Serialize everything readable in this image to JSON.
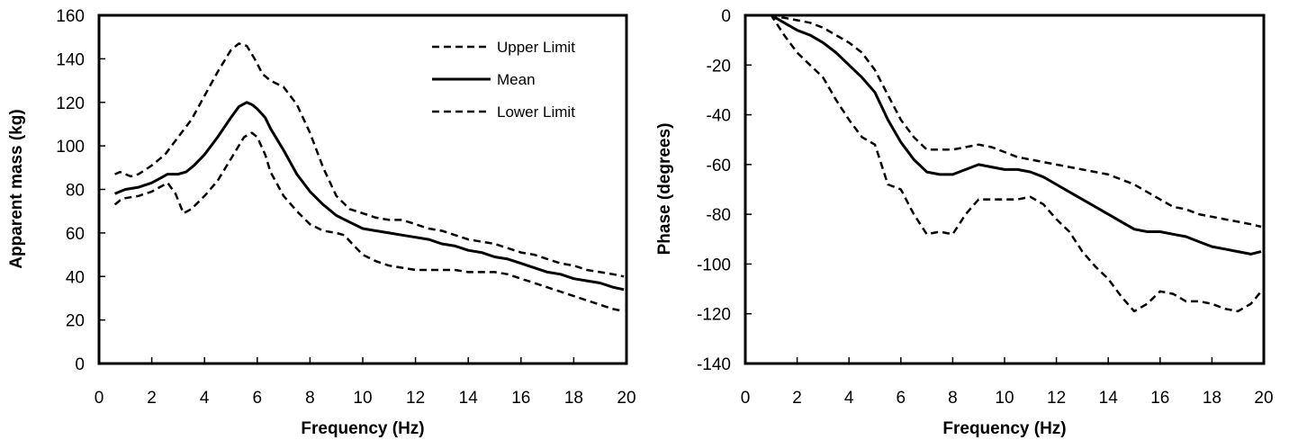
{
  "chart_data": [
    {
      "type": "line",
      "title": "",
      "xlabel": "Frequency (Hz)",
      "ylabel": "Apparent mass (kg)",
      "xlim": [
        0,
        20
      ],
      "ylim": [
        0,
        160
      ],
      "xticks": [
        0,
        2,
        4,
        6,
        8,
        10,
        12,
        14,
        16,
        18,
        20
      ],
      "yticks": [
        0,
        20,
        40,
        60,
        80,
        100,
        120,
        140,
        160
      ],
      "grid": false,
      "legend_position": "top-right",
      "series": [
        {
          "name": "Upper Limit",
          "style": "dashed",
          "x": [
            0.6,
            0.8,
            1.0,
            1.2,
            1.5,
            2.0,
            2.5,
            3.0,
            3.5,
            4.0,
            4.5,
            5.0,
            5.3,
            5.6,
            5.9,
            6.2,
            6.5,
            7.0,
            7.5,
            8.0,
            8.5,
            9.0,
            9.5,
            10.0,
            10.5,
            11.0,
            11.5,
            12.0,
            12.5,
            13.0,
            13.5,
            14.0,
            14.5,
            15.0,
            15.5,
            16.0,
            16.5,
            17.0,
            17.5,
            18.0,
            18.5,
            19.0,
            19.5,
            19.9
          ],
          "y": [
            87,
            88,
            87,
            86,
            87,
            91,
            96,
            104,
            112,
            123,
            134,
            144,
            147,
            146,
            140,
            133,
            130,
            127,
            119,
            106,
            90,
            77,
            71,
            69,
            67,
            66,
            66,
            64,
            62,
            61,
            59,
            57,
            56,
            55,
            53,
            51,
            50,
            48,
            46,
            45,
            43,
            42,
            41,
            40
          ]
        },
        {
          "name": "Mean",
          "style": "solid",
          "x": [
            0.6,
            0.8,
            1.0,
            1.5,
            2.0,
            2.3,
            2.6,
            3.0,
            3.3,
            3.6,
            4.0,
            4.5,
            5.0,
            5.3,
            5.6,
            5.8,
            6.0,
            6.3,
            6.5,
            7.0,
            7.5,
            8.0,
            8.5,
            9.0,
            9.5,
            10.0,
            10.5,
            11.0,
            11.5,
            12.0,
            12.5,
            13.0,
            13.5,
            14.0,
            14.5,
            15.0,
            15.5,
            16.0,
            16.5,
            17.0,
            17.5,
            18.0,
            18.5,
            19.0,
            19.5,
            19.9
          ],
          "y": [
            78,
            79,
            80,
            81,
            83,
            85,
            87,
            87,
            88,
            91,
            96,
            104,
            113,
            118,
            120,
            119,
            117,
            113,
            108,
            98,
            87,
            79,
            73,
            68,
            65,
            62,
            61,
            60,
            59,
            58,
            57,
            55,
            54,
            52,
            51,
            49,
            48,
            46,
            44,
            42,
            41,
            39,
            38,
            37,
            35,
            34
          ]
        },
        {
          "name": "Lower Limit",
          "style": "dashed",
          "x": [
            0.6,
            0.8,
            1.0,
            1.5,
            2.0,
            2.3,
            2.6,
            2.9,
            3.2,
            3.5,
            4.0,
            4.5,
            5.0,
            5.5,
            5.8,
            6.0,
            6.3,
            6.5,
            7.0,
            7.5,
            8.0,
            8.5,
            9.0,
            9.3,
            9.6,
            10.0,
            10.5,
            11.0,
            11.5,
            12.0,
            12.5,
            13.0,
            13.5,
            14.0,
            14.5,
            15.0,
            15.5,
            16.0,
            16.5,
            17.0,
            17.5,
            18.0,
            18.5,
            19.0,
            19.5,
            19.9
          ],
          "y": [
            73,
            75,
            76,
            77,
            79,
            81,
            83,
            78,
            69,
            71,
            77,
            84,
            94,
            104,
            106,
            104,
            96,
            88,
            77,
            70,
            64,
            61,
            60,
            59,
            55,
            50,
            47,
            45,
            44,
            43,
            43,
            43,
            43,
            42,
            42,
            42,
            41,
            39,
            37,
            35,
            33,
            31,
            29,
            27,
            25,
            24
          ]
        }
      ]
    },
    {
      "type": "line",
      "title": "",
      "xlabel": "Frequency (Hz)",
      "ylabel": "Phase (degrees)",
      "xlim": [
        0,
        20
      ],
      "ylim": [
        -140,
        0
      ],
      "xticks": [
        0,
        2,
        4,
        6,
        8,
        10,
        12,
        14,
        16,
        18,
        20
      ],
      "yticks": [
        0,
        -20,
        -40,
        -60,
        -80,
        -100,
        -120,
        -140
      ],
      "grid": false,
      "legend_position": "none",
      "series": [
        {
          "style": "dashed",
          "x": [
            0.5,
            1.0,
            1.5,
            2.0,
            2.5,
            3.0,
            3.5,
            4.0,
            4.5,
            5.0,
            5.5,
            6.0,
            6.5,
            7.0,
            7.5,
            8.0,
            8.5,
            9.0,
            9.5,
            10.0,
            10.5,
            11.0,
            11.5,
            12.0,
            12.5,
            13.0,
            13.5,
            14.0,
            14.5,
            15.0,
            15.5,
            16.0,
            16.5,
            17.0,
            17.5,
            18.0,
            18.5,
            19.0,
            19.5,
            19.9
          ],
          "y": [
            0,
            0,
            -1,
            -2,
            -3,
            -5,
            -8,
            -11,
            -15,
            -22,
            -32,
            -42,
            -49,
            -54,
            -54,
            -54,
            -53,
            -52,
            -53,
            -55,
            -57,
            -58,
            -59,
            -60,
            -61,
            -62,
            -63,
            -64,
            -66,
            -68,
            -71,
            -74,
            -77,
            -78,
            -80,
            -81,
            -82,
            -83,
            -84,
            -85
          ]
        },
        {
          "style": "solid",
          "x": [
            0.5,
            1.0,
            1.5,
            2.0,
            2.5,
            3.0,
            3.5,
            4.0,
            4.5,
            5.0,
            5.5,
            6.0,
            6.5,
            7.0,
            7.5,
            8.0,
            8.5,
            9.0,
            9.5,
            10.0,
            10.5,
            11.0,
            11.5,
            12.0,
            12.5,
            13.0,
            13.5,
            14.0,
            14.5,
            15.0,
            15.5,
            16.0,
            16.5,
            17.0,
            17.5,
            18.0,
            18.5,
            19.0,
            19.5,
            19.9
          ],
          "y": [
            0,
            0,
            -3,
            -6,
            -8,
            -11,
            -15,
            -20,
            -25,
            -31,
            -42,
            -51,
            -58,
            -63,
            -64,
            -64,
            -62,
            -60,
            -61,
            -62,
            -62,
            -63,
            -65,
            -68,
            -71,
            -74,
            -77,
            -80,
            -83,
            -86,
            -87,
            -87,
            -88,
            -89,
            -91,
            -93,
            -94,
            -95,
            -96,
            -95
          ]
        },
        {
          "style": "dashed",
          "x": [
            0.5,
            1.0,
            1.5,
            2.0,
            2.5,
            3.0,
            3.5,
            4.0,
            4.5,
            5.0,
            5.5,
            6.0,
            6.5,
            7.0,
            7.5,
            8.0,
            8.5,
            9.0,
            9.5,
            10.0,
            10.5,
            11.0,
            11.5,
            12.0,
            12.5,
            13.0,
            13.5,
            14.0,
            14.5,
            15.0,
            15.5,
            16.0,
            16.5,
            17.0,
            17.5,
            18.0,
            18.5,
            19.0,
            19.5,
            19.9
          ],
          "y": [
            0,
            0,
            -8,
            -15,
            -20,
            -25,
            -34,
            -42,
            -49,
            -52,
            -68,
            -70,
            -80,
            -88,
            -87,
            -88,
            -80,
            -74,
            -74,
            -74,
            -74,
            -73,
            -76,
            -82,
            -87,
            -95,
            -101,
            -106,
            -113,
            -119,
            -116,
            -111,
            -112,
            -115,
            -115,
            -116,
            -118,
            -119,
            -116,
            -111
          ]
        }
      ]
    }
  ]
}
